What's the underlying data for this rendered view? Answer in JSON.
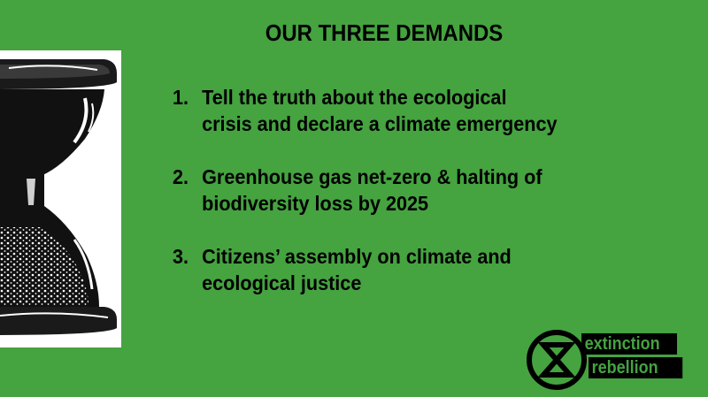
{
  "title": "OUR THREE DEMANDS",
  "demands": [
    {
      "number": "1.",
      "text": "Tell the truth about the ecological crisis and declare a climate emergency"
    },
    {
      "number": "2.",
      "text": "Greenhouse gas net-zero & halting of biodiversity loss by 2025"
    },
    {
      "number": "3.",
      "text": "Citizens’ assembly on climate and ecological justice"
    }
  ],
  "logo": {
    "line1": "extinction",
    "line2": "rebellion"
  },
  "colors": {
    "background": "#45A340",
    "text": "#000000",
    "panel": "#FFFFFF"
  },
  "icons": {
    "illustration": "hourglass-icon",
    "logo": "extinction-symbol-icon"
  }
}
